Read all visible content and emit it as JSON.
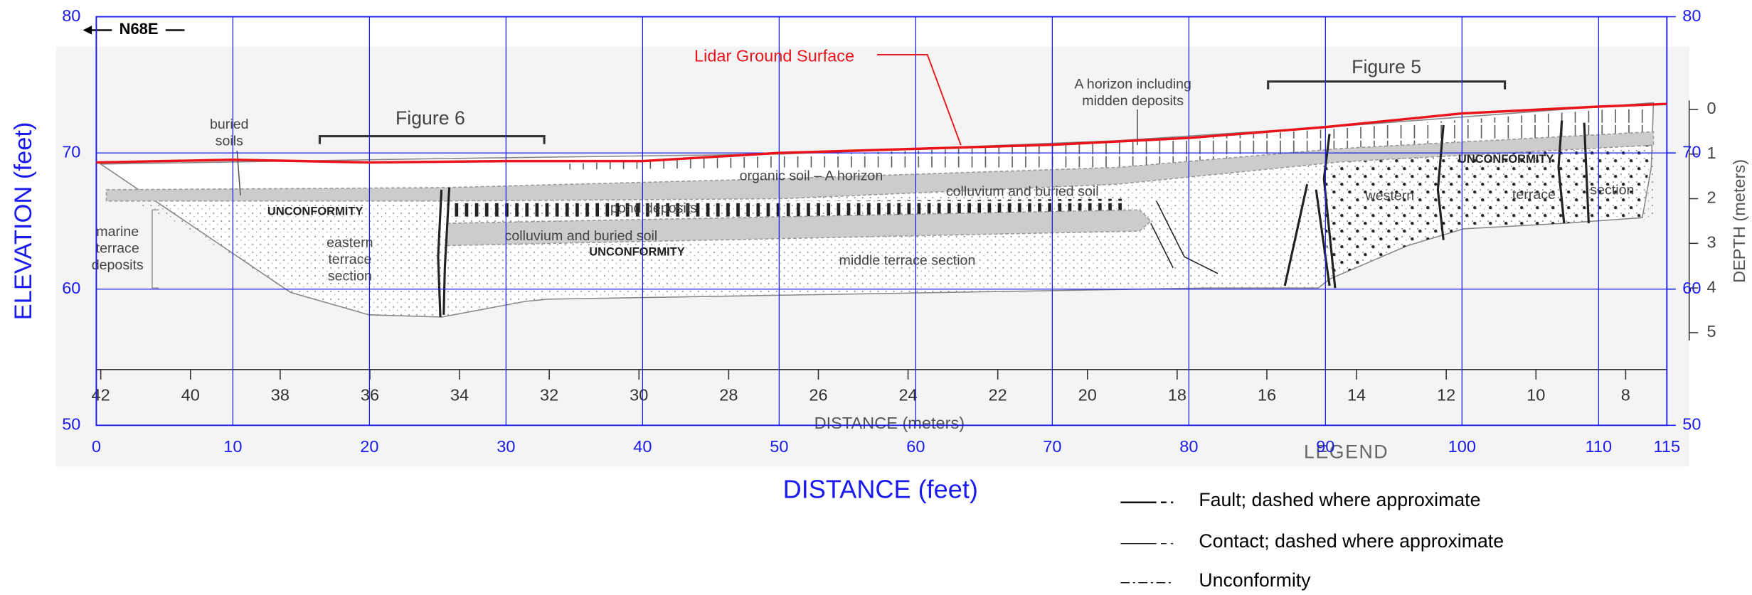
{
  "chart_data": {
    "type": "line",
    "x_label": "DISTANCE (feet)",
    "y_label": "ELEVATION (feet)",
    "x": [
      0,
      10,
      20,
      30,
      40,
      50,
      60,
      70,
      80,
      90,
      100,
      110,
      115
    ],
    "series": [
      {
        "name": "Lidar Ground Surface",
        "color": "#e8141a",
        "values": [
          69.3,
          69.5,
          69.3,
          69.4,
          69.4,
          70.0,
          70.3,
          70.6,
          71.1,
          71.9,
          72.9,
          73.4,
          73.6
        ]
      }
    ],
    "xlim": [
      0,
      115
    ],
    "ylim": [
      50,
      80
    ],
    "xticks": [
      0,
      10,
      20,
      30,
      40,
      50,
      60,
      70,
      80,
      90,
      100,
      110,
      115
    ],
    "yticks": [
      50,
      60,
      70,
      80
    ],
    "y2lim": [
      50,
      80
    ],
    "y2ticks": [
      50,
      60,
      70,
      80
    ],
    "grid": true
  },
  "section": {
    "orientation": "N68E",
    "meters_axis": {
      "label": "DISTANCE (meters)",
      "ticks": [
        42,
        40,
        38,
        36,
        34,
        32,
        30,
        28,
        26,
        24,
        22,
        20,
        18,
        16,
        14,
        12,
        10,
        8
      ]
    },
    "depth_axis": {
      "label": "DEPTH (meters)",
      "ticks": [
        0,
        1,
        2,
        3,
        4,
        5
      ]
    },
    "labels": [
      [
        "buried",
        "soils"
      ],
      [
        "Figure 6"
      ],
      [
        "Figure 5"
      ],
      [
        "A horizon including",
        "midden deposits"
      ],
      [
        "organic soil – A horizon"
      ],
      [
        "colluvium and buried soil"
      ],
      [
        "pond deposits"
      ],
      [
        "UNCONFORMITY"
      ],
      [
        "colluvium and buried soil"
      ],
      [
        "UNCONFORMITY"
      ],
      [
        "marine",
        "terrace",
        "deposits"
      ],
      [
        "eastern",
        "terrace",
        "section"
      ],
      [
        "middle terrace section"
      ],
      [
        "western"
      ],
      [
        "UNCONFORMITY"
      ],
      [
        "terrace"
      ],
      [
        "section"
      ]
    ]
  },
  "legend": {
    "title": "LEGEND",
    "entries": [
      "Fault; dashed where approximate",
      "Contact; dashed where approximate",
      "Unconformity"
    ]
  }
}
